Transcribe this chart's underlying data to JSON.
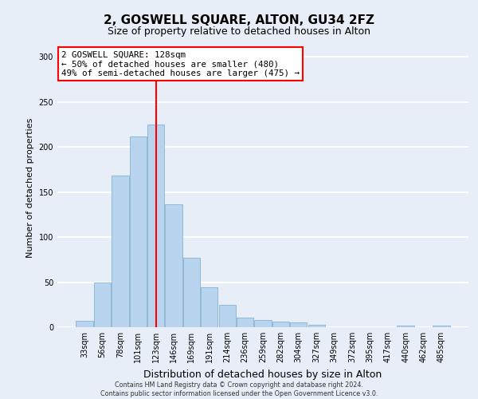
{
  "title": "2, GOSWELL SQUARE, ALTON, GU34 2FZ",
  "subtitle": "Size of property relative to detached houses in Alton",
  "xlabel": "Distribution of detached houses by size in Alton",
  "ylabel": "Number of detached properties",
  "bar_labels": [
    "33sqm",
    "56sqm",
    "78sqm",
    "101sqm",
    "123sqm",
    "146sqm",
    "169sqm",
    "191sqm",
    "214sqm",
    "236sqm",
    "259sqm",
    "282sqm",
    "304sqm",
    "327sqm",
    "349sqm",
    "372sqm",
    "395sqm",
    "417sqm",
    "440sqm",
    "462sqm",
    "485sqm"
  ],
  "bar_values": [
    7,
    50,
    168,
    212,
    225,
    136,
    77,
    44,
    25,
    11,
    8,
    6,
    5,
    3,
    0,
    0,
    0,
    0,
    2,
    0,
    2
  ],
  "bar_color": "#b8d4ee",
  "bar_edgecolor": "#7aaac8",
  "vline_x": 4,
  "vline_color": "red",
  "annotation_title": "2 GOSWELL SQUARE: 128sqm",
  "annotation_line1": "← 50% of detached houses are smaller (480)",
  "annotation_line2": "49% of semi-detached houses are larger (475) →",
  "annotation_box_color": "white",
  "annotation_box_edgecolor": "red",
  "ylim": [
    0,
    310
  ],
  "yticks": [
    0,
    50,
    100,
    150,
    200,
    250,
    300
  ],
  "footer1": "Contains HM Land Registry data © Crown copyright and database right 2024.",
  "footer2": "Contains public sector information licensed under the Open Government Licence v3.0.",
  "background_color": "#e8eef8",
  "plot_background": "#e8eef8",
  "grid_color": "white",
  "title_fontsize": 11,
  "subtitle_fontsize": 9,
  "xlabel_fontsize": 9,
  "ylabel_fontsize": 8,
  "tick_fontsize": 7,
  "bar_width": 0.95
}
